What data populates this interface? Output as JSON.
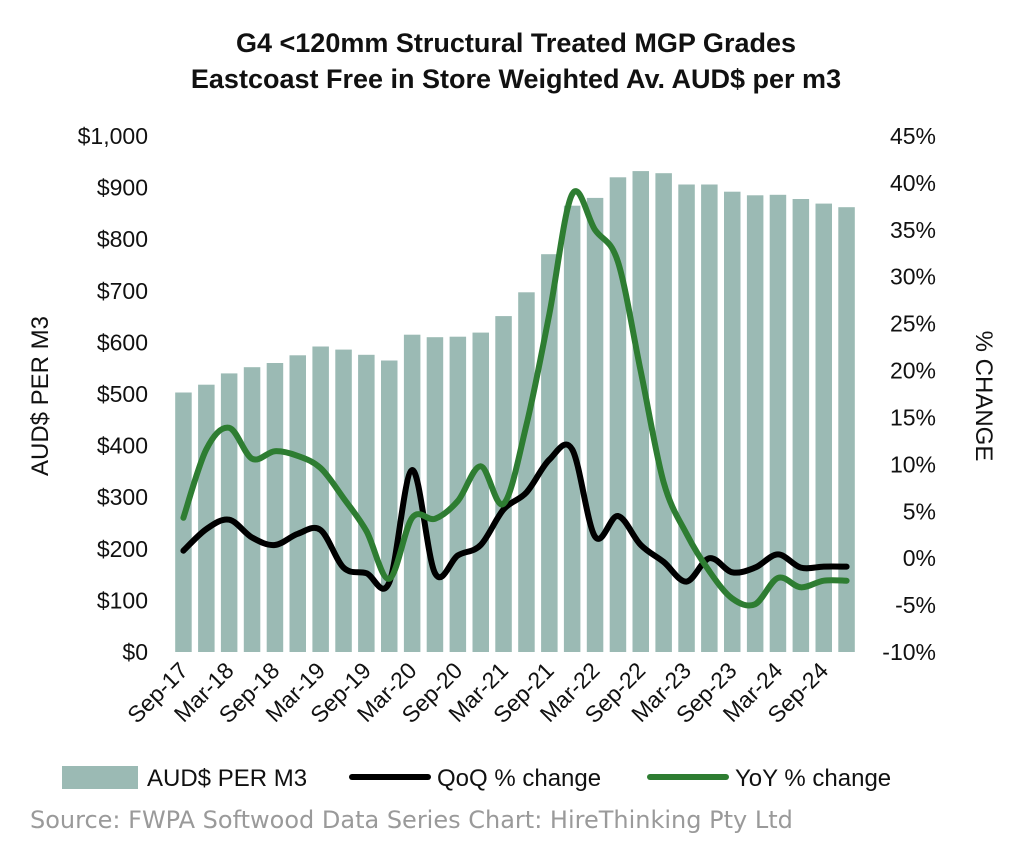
{
  "chart_data": {
    "type": "bar",
    "title": [
      "G4 <120mm Structural Treated MGP Grades",
      "Eastcoast Free in Store Weighted Av. AUD$ per m3"
    ],
    "ylabel": "AUD$ PER M3",
    "y2label": "% CHANGE",
    "ylim": [
      0,
      1000
    ],
    "y2lim": [
      -10,
      45
    ],
    "yticks": [
      "$0",
      "$100",
      "$200",
      "$300",
      "$400",
      "$500",
      "$600",
      "$700",
      "$800",
      "$900",
      "$1,000"
    ],
    "y2ticks": [
      "-10%",
      "-5%",
      "0%",
      "5%",
      "10%",
      "15%",
      "20%",
      "25%",
      "30%",
      "35%",
      "40%",
      "45%"
    ],
    "xtick_labels": [
      "Sep-17",
      "Mar-18",
      "Sep-18",
      "Mar-19",
      "Sep-19",
      "Mar-20",
      "Sep-20",
      "Mar-21",
      "Sep-21",
      "Mar-22",
      "Sep-22",
      "Mar-23",
      "Sep-23",
      "Mar-24",
      "Sep-24"
    ],
    "categories": [
      "Sep-17",
      "Dec-17",
      "Mar-18",
      "Jun-18",
      "Sep-18",
      "Dec-18",
      "Mar-19",
      "Jun-19",
      "Sep-19",
      "Dec-19",
      "Mar-20",
      "Jun-20",
      "Sep-20",
      "Dec-20",
      "Mar-21",
      "Jun-21",
      "Sep-21",
      "Dec-21",
      "Mar-22",
      "Jun-22",
      "Sep-22",
      "Dec-22",
      "Mar-23",
      "Jun-23",
      "Sep-23",
      "Dec-23",
      "Mar-24",
      "Jun-24",
      "Sep-24",
      "Dec-24"
    ],
    "series": [
      {
        "name": "AUD$ PER M3",
        "kind": "bar",
        "axis": "left",
        "color": "#9bbab4",
        "values": [
          503,
          518,
          540,
          552,
          560,
          575,
          592,
          586,
          576,
          565,
          615,
          610,
          611,
          619,
          651,
          697,
          771,
          865,
          880,
          920,
          932,
          928,
          906,
          906,
          892,
          885,
          886,
          878,
          869,
          862
        ]
      },
      {
        "name": "QoQ % change",
        "kind": "line",
        "axis": "right",
        "color": "#000000",
        "values": [
          0.8,
          3.1,
          4.1,
          2.2,
          1.4,
          2.6,
          3.0,
          -1.0,
          -1.6,
          -2.6,
          9.4,
          -1.6,
          0.3,
          1.4,
          5.2,
          7.0,
          10.5,
          11.6,
          2.3,
          4.5,
          1.4,
          -0.4,
          -2.5,
          0.0,
          -1.5,
          -1.0,
          0.4,
          -1.0,
          -0.9,
          -0.9
        ]
      },
      {
        "name": "YoY % change",
        "kind": "line",
        "axis": "right",
        "color": "#2e7d32",
        "values": [
          4.3,
          11.6,
          13.9,
          10.6,
          11.4,
          10.9,
          9.6,
          6.4,
          2.9,
          -2.2,
          4.3,
          4.2,
          6.1,
          9.8,
          5.8,
          14.2,
          26.0,
          38.8,
          35.0,
          31.6,
          19.9,
          8.1,
          2.6,
          -1.4,
          -4.3,
          -4.9,
          -2.1,
          -3.1,
          -2.4,
          -2.4
        ]
      }
    ],
    "legend": [
      {
        "label": "AUD$ PER M3",
        "kind": "bar",
        "color": "#9bbab4"
      },
      {
        "label": "QoQ % change",
        "kind": "line",
        "color": "#000000"
      },
      {
        "label": "YoY % change",
        "kind": "line",
        "color": "#2e7d32"
      }
    ],
    "legend_position": "bottom",
    "source": "Source: FWPA Softwood Data Series Chart: HireThinking Pty Ltd"
  }
}
